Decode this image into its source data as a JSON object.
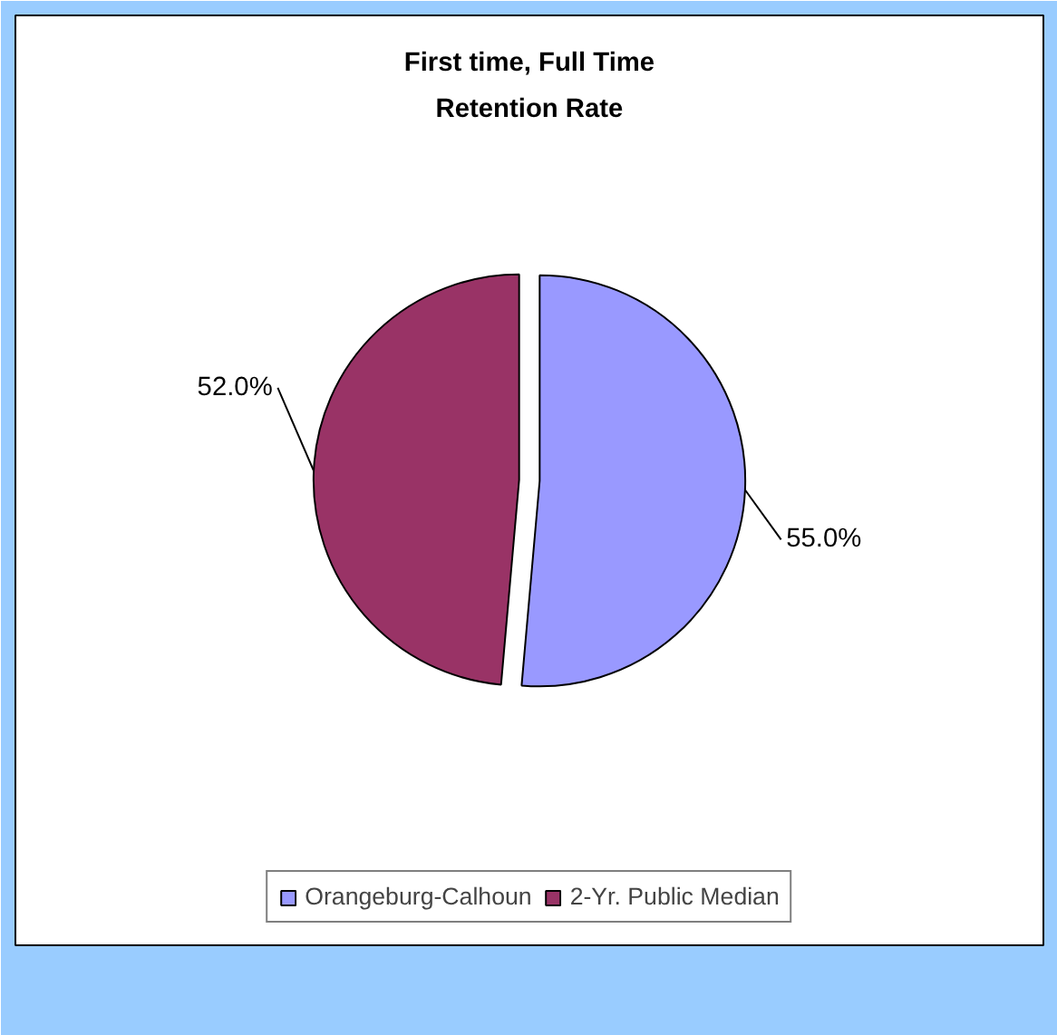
{
  "chart_data": {
    "type": "pie",
    "title": "First time, Full Time\nRetention Rate",
    "categories": [
      "Orangeburg-Calhoun",
      "2-Yr. Public Median"
    ],
    "values": [
      55.0,
      52.0
    ],
    "colors": [
      "#9999ff",
      "#993366"
    ],
    "value_labels": [
      "55.0%",
      "52.0%"
    ],
    "legend": "bottom"
  }
}
